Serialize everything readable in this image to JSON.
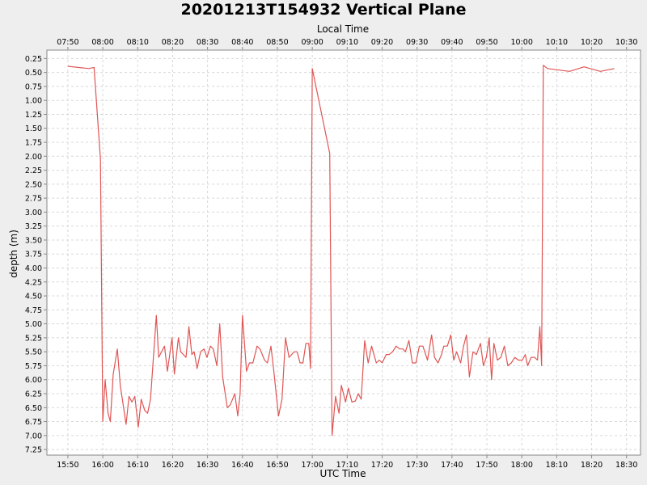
{
  "chart_data": {
    "type": "line",
    "title": "20201213T154932 Vertical Plane",
    "xlabel": "UTC Time",
    "x2label": "Local Time",
    "ylabel": "depth (m)",
    "x_range_utc": [
      "15:44",
      "18:34"
    ],
    "ylim": [
      0.1,
      7.35
    ],
    "y_inverted": true,
    "grid": true,
    "line_color": "#e05555",
    "x_ticks_utc": [
      "15:50",
      "16:00",
      "16:10",
      "16:20",
      "16:30",
      "16:40",
      "16:50",
      "17:00",
      "17:10",
      "17:20",
      "17:30",
      "17:40",
      "17:50",
      "18:00",
      "18:10",
      "18:20",
      "18:30"
    ],
    "x_ticks_local": [
      "07:50",
      "08:00",
      "08:10",
      "08:20",
      "08:30",
      "08:40",
      "08:50",
      "09:00",
      "09:10",
      "09:20",
      "09:30",
      "09:40",
      "09:50",
      "10:00",
      "10:10",
      "10:20",
      "10:30"
    ],
    "y_ticks": [
      "0.25",
      "0.50",
      "0.75",
      "1.00",
      "1.25",
      "1.50",
      "1.75",
      "2.00",
      "2.25",
      "2.50",
      "2.75",
      "3.00",
      "3.25",
      "3.50",
      "3.75",
      "4.00",
      "4.25",
      "4.50",
      "4.75",
      "5.00",
      "5.25",
      "5.50",
      "5.75",
      "6.00",
      "6.25",
      "6.50",
      "6.75",
      "7.00",
      "7.25"
    ],
    "series": [
      {
        "points": [
          [
            "15:50:00",
            0.39
          ],
          [
            "15:56:00",
            0.43
          ],
          [
            "15:57:30",
            0.41
          ],
          [
            "15:59:20",
            2.05
          ],
          [
            "16:00:00",
            6.75
          ],
          [
            "16:00:40",
            6.0
          ],
          [
            "16:01:30",
            6.6
          ],
          [
            "16:02:10",
            6.75
          ],
          [
            "16:03:00",
            5.9
          ],
          [
            "16:04:10",
            5.45
          ],
          [
            "16:05:00",
            6.1
          ],
          [
            "16:06:40",
            6.8
          ],
          [
            "16:07:30",
            6.3
          ],
          [
            "16:08:20",
            6.4
          ],
          [
            "16:09:10",
            6.3
          ],
          [
            "16:10:10",
            6.85
          ],
          [
            "16:11:00",
            6.35
          ],
          [
            "16:12:00",
            6.55
          ],
          [
            "16:12:50",
            6.6
          ],
          [
            "16:13:40",
            6.35
          ],
          [
            "16:15:20",
            4.85
          ],
          [
            "16:16:00",
            5.6
          ],
          [
            "16:17:40",
            5.4
          ],
          [
            "16:18:30",
            5.85
          ],
          [
            "16:19:50",
            5.25
          ],
          [
            "16:20:30",
            5.9
          ],
          [
            "16:21:40",
            5.25
          ],
          [
            "16:22:20",
            5.5
          ],
          [
            "16:23:50",
            5.6
          ],
          [
            "16:24:40",
            5.05
          ],
          [
            "16:25:30",
            5.55
          ],
          [
            "16:26:10",
            5.5
          ],
          [
            "16:27:00",
            5.8
          ],
          [
            "16:28:00",
            5.5
          ],
          [
            "16:29:00",
            5.45
          ],
          [
            "16:29:50",
            5.6
          ],
          [
            "16:30:50",
            5.4
          ],
          [
            "16:31:40",
            5.45
          ],
          [
            "16:32:40",
            5.75
          ],
          [
            "16:33:30",
            5.0
          ],
          [
            "16:34:20",
            5.95
          ],
          [
            "16:35:40",
            6.5
          ],
          [
            "16:36:30",
            6.45
          ],
          [
            "16:37:50",
            6.25
          ],
          [
            "16:38:40",
            6.65
          ],
          [
            "16:39:20",
            6.25
          ],
          [
            "16:40:00",
            4.85
          ],
          [
            "16:41:10",
            5.85
          ],
          [
            "16:42:00",
            5.7
          ],
          [
            "16:43:00",
            5.7
          ],
          [
            "16:44:10",
            5.4
          ],
          [
            "16:45:00",
            5.45
          ],
          [
            "16:46:20",
            5.65
          ],
          [
            "16:47:10",
            5.7
          ],
          [
            "16:48:10",
            5.4
          ],
          [
            "16:49:00",
            5.85
          ],
          [
            "16:49:50",
            6.35
          ],
          [
            "16:50:20",
            6.65
          ],
          [
            "16:51:20",
            6.35
          ],
          [
            "16:52:20",
            5.25
          ],
          [
            "16:53:20",
            5.6
          ],
          [
            "16:54:50",
            5.5
          ],
          [
            "16:55:40",
            5.5
          ],
          [
            "16:56:30",
            5.7
          ],
          [
            "16:57:20",
            5.7
          ],
          [
            "16:58:10",
            5.35
          ],
          [
            "16:59:00",
            5.35
          ],
          [
            "16:59:30",
            5.8
          ],
          [
            "17:00:00",
            0.43
          ],
          [
            "17:05:00",
            1.95
          ],
          [
            "17:05:40",
            7.0
          ],
          [
            "17:06:40",
            6.3
          ],
          [
            "17:07:40",
            6.6
          ],
          [
            "17:08:20",
            6.1
          ],
          [
            "17:09:30",
            6.4
          ],
          [
            "17:10:20",
            6.15
          ],
          [
            "17:11:20",
            6.4
          ],
          [
            "17:12:20",
            6.38
          ],
          [
            "17:13:10",
            6.25
          ],
          [
            "17:14:00",
            6.35
          ],
          [
            "17:15:00",
            5.3
          ],
          [
            "17:16:00",
            5.7
          ],
          [
            "17:17:00",
            5.4
          ],
          [
            "17:18:20",
            5.7
          ],
          [
            "17:19:10",
            5.65
          ],
          [
            "17:20:00",
            5.7
          ],
          [
            "17:21:10",
            5.55
          ],
          [
            "17:22:00",
            5.55
          ],
          [
            "17:23:00",
            5.5
          ],
          [
            "17:24:00",
            5.4
          ],
          [
            "17:25:00",
            5.45
          ],
          [
            "17:26:00",
            5.45
          ],
          [
            "17:26:40",
            5.5
          ],
          [
            "17:27:40",
            5.3
          ],
          [
            "17:28:40",
            5.7
          ],
          [
            "17:29:40",
            5.7
          ],
          [
            "17:30:40",
            5.4
          ],
          [
            "17:31:40",
            5.4
          ],
          [
            "17:33:00",
            5.65
          ],
          [
            "17:34:10",
            5.2
          ],
          [
            "17:35:00",
            5.6
          ],
          [
            "17:36:00",
            5.7
          ],
          [
            "17:37:00",
            5.55
          ],
          [
            "17:37:40",
            5.4
          ],
          [
            "17:38:40",
            5.4
          ],
          [
            "17:39:40",
            5.2
          ],
          [
            "17:40:30",
            5.65
          ],
          [
            "17:41:20",
            5.5
          ],
          [
            "17:42:30",
            5.7
          ],
          [
            "17:43:20",
            5.4
          ],
          [
            "17:44:10",
            5.2
          ],
          [
            "17:45:00",
            5.95
          ],
          [
            "17:46:00",
            5.5
          ],
          [
            "17:47:00",
            5.55
          ],
          [
            "17:48:10",
            5.35
          ],
          [
            "17:49:00",
            5.75
          ],
          [
            "17:49:50",
            5.6
          ],
          [
            "17:50:40",
            5.25
          ],
          [
            "17:51:20",
            6.0
          ],
          [
            "17:52:00",
            5.35
          ],
          [
            "17:53:00",
            5.65
          ],
          [
            "17:54:00",
            5.6
          ],
          [
            "17:55:00",
            5.4
          ],
          [
            "17:56:00",
            5.75
          ],
          [
            "17:57:00",
            5.7
          ],
          [
            "17:58:00",
            5.6
          ],
          [
            "17:59:00",
            5.65
          ],
          [
            "18:00:10",
            5.65
          ],
          [
            "18:01:00",
            5.55
          ],
          [
            "18:01:40",
            5.75
          ],
          [
            "18:02:40",
            5.6
          ],
          [
            "18:03:40",
            5.6
          ],
          [
            "18:04:30",
            5.65
          ],
          [
            "18:05:10",
            5.05
          ],
          [
            "18:05:40",
            5.75
          ],
          [
            "18:06:10",
            0.37
          ],
          [
            "18:07:20",
            0.43
          ],
          [
            "18:13:40",
            0.48
          ],
          [
            "18:17:50",
            0.4
          ],
          [
            "18:22:30",
            0.48
          ],
          [
            "18:26:30",
            0.43
          ]
        ]
      }
    ]
  }
}
